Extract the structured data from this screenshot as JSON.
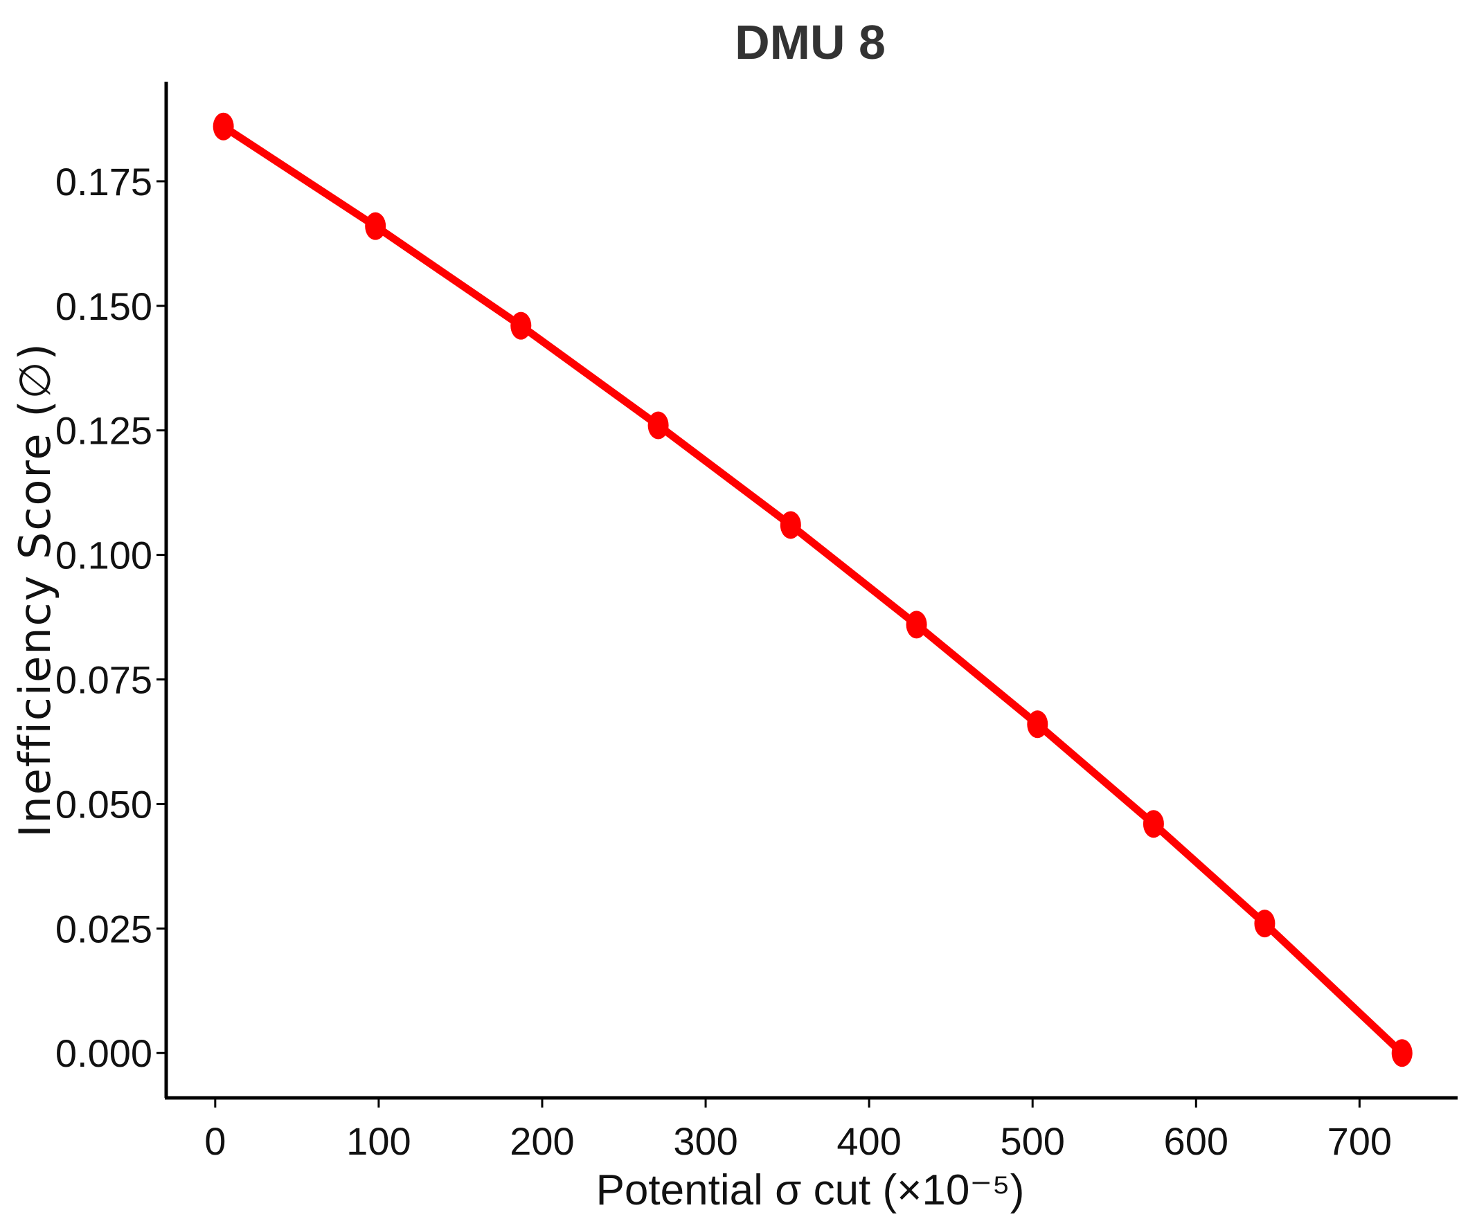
{
  "chart_data": {
    "type": "line",
    "title": "DMU 8",
    "xlabel": "Potential σ cut (×10⁻⁵)",
    "ylabel": "Inefficiency Score (∅)",
    "xlim": [
      -30,
      760
    ],
    "ylim": [
      -0.009,
      0.195
    ],
    "xticks": [
      0,
      100,
      200,
      300,
      400,
      500,
      600,
      700
    ],
    "xtick_labels": [
      "0",
      "100",
      "200",
      "300",
      "400",
      "500",
      "600",
      "700"
    ],
    "yticks": [
      0,
      0.025,
      0.05,
      0.075,
      0.1,
      0.125,
      0.15,
      0.175
    ],
    "ytick_labels": [
      "0.000",
      "0.025",
      "0.050",
      "0.075",
      "0.100",
      "0.125",
      "0.150",
      "0.175"
    ],
    "grid": false,
    "series": [
      {
        "color": "#ff0000",
        "marker": "circle",
        "x": [
          5,
          98,
          187,
          271,
          352,
          429,
          503,
          574,
          642,
          726
        ],
        "y": [
          0.186,
          0.166,
          0.146,
          0.126,
          0.106,
          0.086,
          0.066,
          0.046,
          0.026,
          0.0
        ]
      }
    ]
  }
}
